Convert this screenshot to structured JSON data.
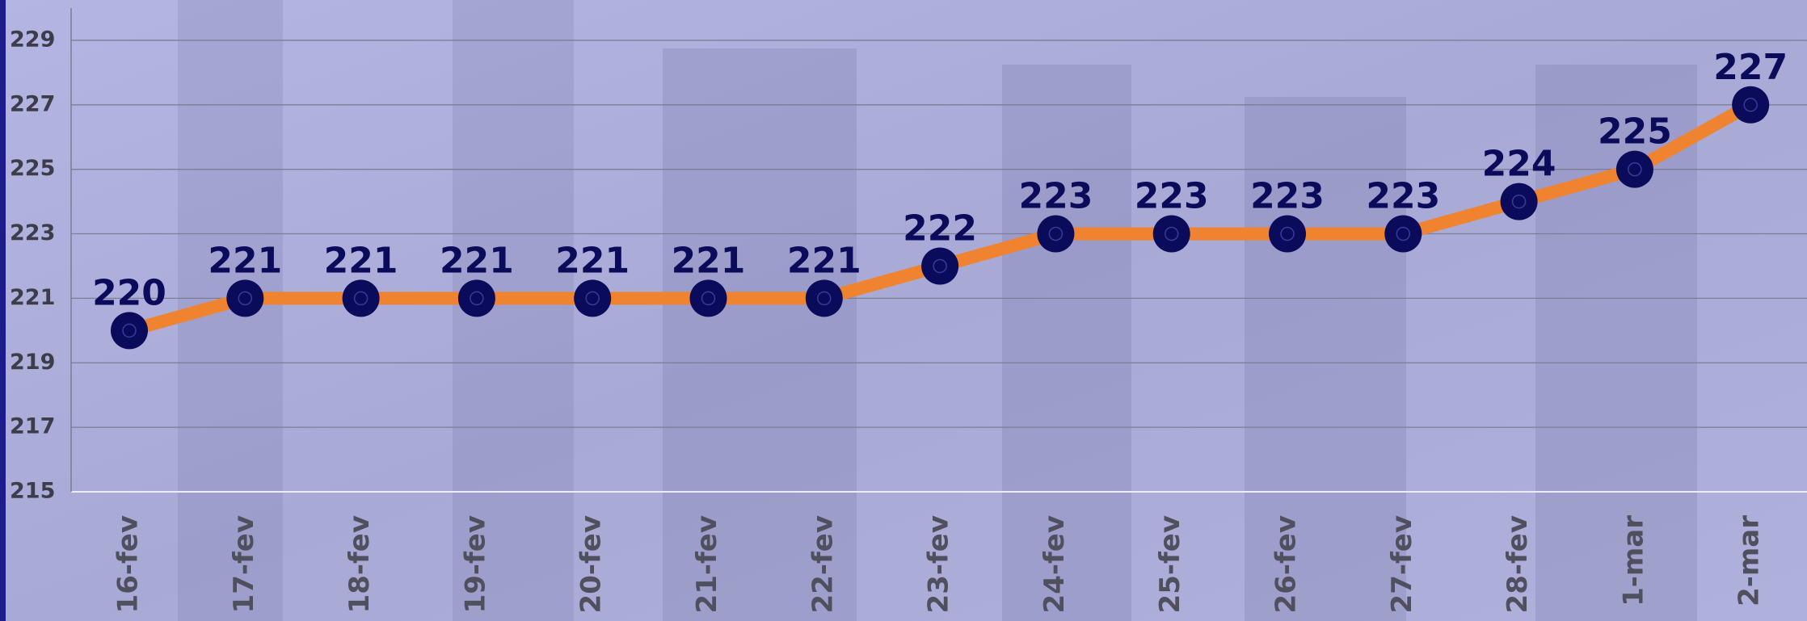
{
  "chart_data": {
    "type": "line",
    "categories": [
      "16-fev",
      "17-fev",
      "18-fev",
      "19-fev",
      "20-fev",
      "21-fev",
      "22-fev",
      "23-fev",
      "24-fev",
      "25-fev",
      "26-fev",
      "27-fev",
      "28-fev",
      "1-mar",
      "2-mar"
    ],
    "values": [
      220,
      221,
      221,
      221,
      221,
      221,
      221,
      222,
      223,
      223,
      223,
      223,
      224,
      225,
      227
    ],
    "color": "#f0832f",
    "marker_color": "#0b0b5c",
    "ylim": [
      215,
      230
    ],
    "yticks": [
      215,
      217,
      219,
      221,
      223,
      225,
      227,
      229
    ],
    "grid": true
  }
}
